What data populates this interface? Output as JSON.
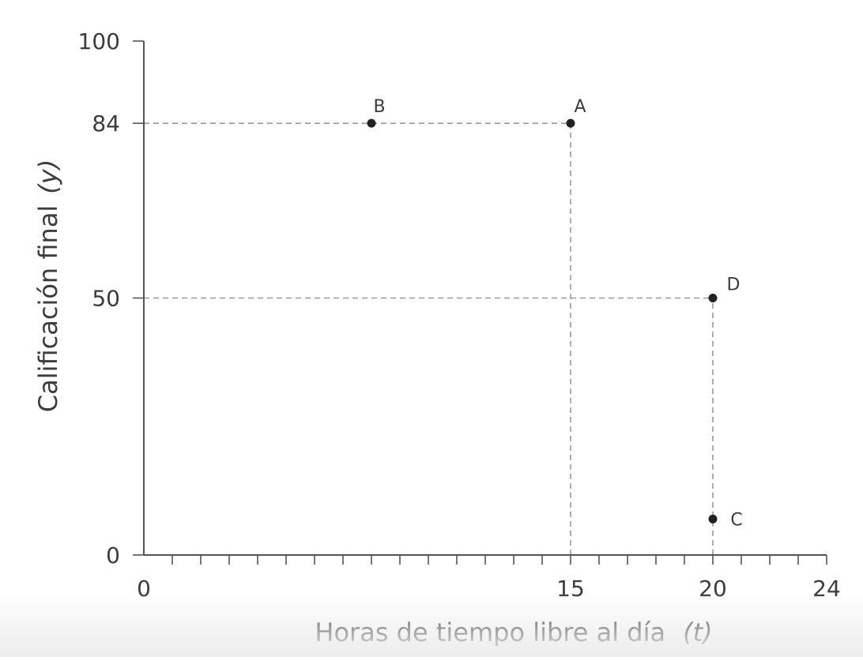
{
  "chart_data": {
    "type": "scatter",
    "xlabel": "Horas de tiempo libre al día",
    "xvar": "(t)",
    "ylabel": "Calificación final",
    "yvar": "(y)",
    "xlim": [
      0,
      24
    ],
    "ylim": [
      0,
      100
    ],
    "x_tick_labels": [
      0,
      15,
      20,
      24
    ],
    "y_tick_labels": [
      0,
      50,
      84,
      100
    ],
    "x_minor_ticks": [
      1,
      2,
      3,
      4,
      5,
      6,
      7,
      8,
      9,
      10,
      11,
      12,
      13,
      14,
      15,
      16,
      17,
      18,
      19,
      20,
      21,
      22,
      23,
      24
    ],
    "points": [
      {
        "label": "A",
        "x": 15,
        "y": 84
      },
      {
        "label": "B",
        "x": 8,
        "y": 84
      },
      {
        "label": "C",
        "x": 20,
        "y": 7
      },
      {
        "label": "D",
        "x": 20,
        "y": 50
      }
    ],
    "guide_lines": [
      {
        "from_axis": "y",
        "value": 84,
        "to_x": 15
      },
      {
        "from_axis": "y",
        "value": 50,
        "to_x": 20
      },
      {
        "from_axis": "x",
        "value": 15,
        "to_y": 84
      },
      {
        "from_axis": "x",
        "value": 20,
        "to_y": 50
      }
    ],
    "grid": false,
    "colors": {
      "axis": "#555555",
      "point": "#222222",
      "guide": "#9a9a9a",
      "text": "#3c3c3c"
    }
  }
}
